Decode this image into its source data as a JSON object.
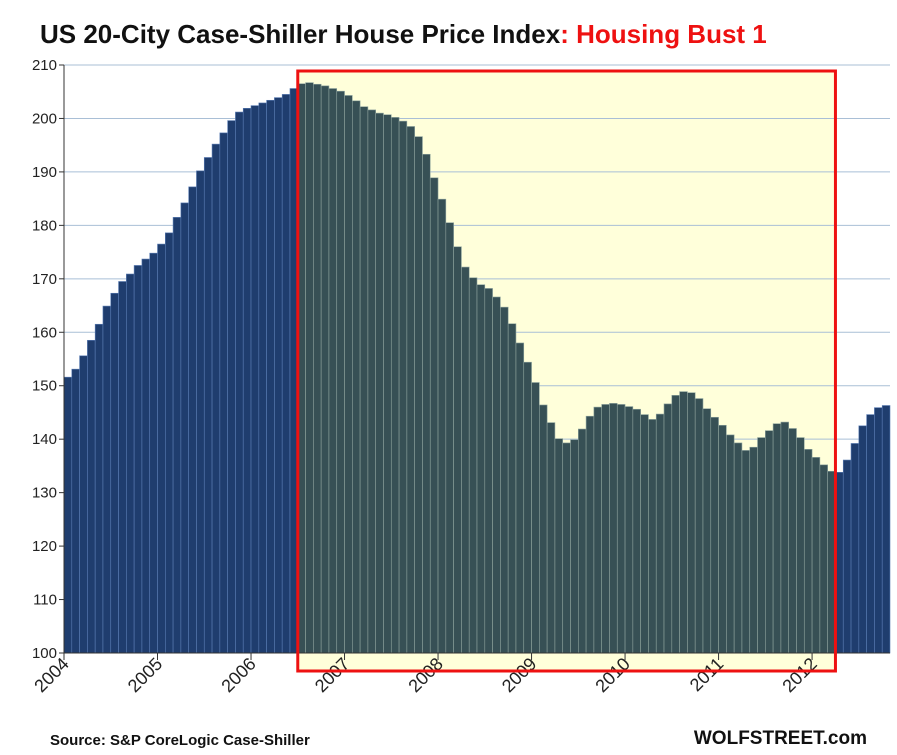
{
  "chart_data": {
    "type": "bar",
    "title": "US 20-City Case-Shiller House Price Index",
    "title_highlight": ": Housing Bust 1",
    "source": "Source: S&P CoreLogic Case-Shiller",
    "brand": "WOLFSTREET.com",
    "xlabel": "",
    "ylabel": "",
    "ylim": [
      100,
      210
    ],
    "yticks": [
      100,
      110,
      120,
      130,
      140,
      150,
      160,
      170,
      180,
      190,
      200,
      210
    ],
    "grid": true,
    "x_start": "2004-01",
    "frequency": "monthly",
    "xtick_labels": [
      "2004",
      "2005",
      "2006",
      "2007",
      "2008",
      "2009",
      "2010",
      "2011",
      "2012"
    ],
    "highlight": {
      "label": "Housing Bust 1",
      "start": "2006-07",
      "end": "2012-03"
    },
    "values": [
      151.6,
      153.1,
      155.6,
      158.5,
      161.5,
      164.9,
      167.3,
      169.5,
      170.9,
      172.5,
      173.7,
      174.8,
      176.5,
      178.6,
      181.5,
      184.2,
      187.2,
      190.2,
      192.7,
      195.2,
      197.3,
      199.6,
      201.2,
      201.9,
      202.4,
      202.9,
      203.4,
      203.9,
      204.5,
      205.6,
      206.5,
      206.7,
      206.4,
      206.1,
      205.6,
      205.1,
      204.3,
      203.3,
      202.2,
      201.6,
      201.0,
      200.7,
      200.2,
      199.5,
      198.5,
      196.6,
      193.3,
      188.9,
      184.9,
      180.5,
      176.0,
      172.2,
      170.2,
      168.9,
      168.2,
      166.6,
      164.7,
      161.6,
      158.0,
      154.4,
      150.6,
      146.4,
      143.1,
      140.1,
      139.3,
      139.9,
      141.9,
      144.3,
      146.0,
      146.5,
      146.7,
      146.5,
      146.1,
      145.6,
      144.6,
      143.7,
      144.7,
      146.6,
      148.2,
      148.9,
      148.7,
      147.6,
      145.7,
      144.1,
      142.6,
      140.8,
      139.3,
      137.9,
      138.5,
      140.3,
      141.6,
      142.9,
      143.2,
      142.0,
      140.3,
      138.1,
      136.6,
      135.2,
      134.0,
      133.8,
      136.1,
      139.2,
      142.5,
      144.6,
      145.9,
      146.3
    ],
    "colors": {
      "bar_fill": "#1f3d6e",
      "bar_outline": "#5b7db4",
      "highlight_bar_fill": "#375055",
      "highlight_bar_outline": "#8ea39d",
      "highlight_background": "#ffffda",
      "highlight_border": "#ee1111",
      "title_accent": "#ee1111",
      "grid": "#a9bfd6",
      "axis": "#333333"
    }
  }
}
